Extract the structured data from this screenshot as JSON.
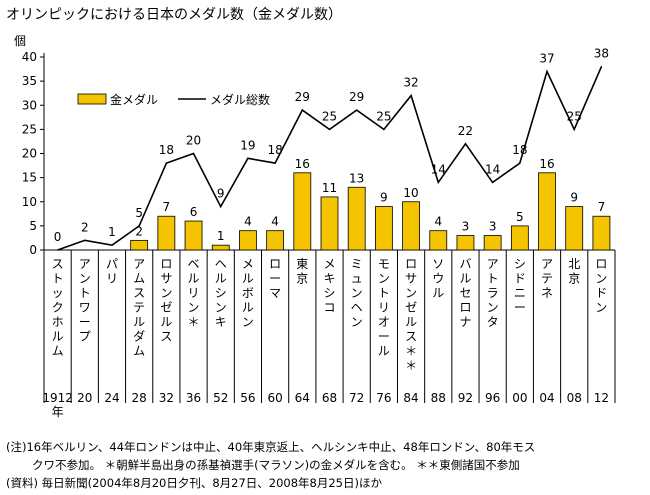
{
  "title": "オリンピックにおける日本のメダル数（金メダル数）",
  "chart_data": {
    "type": "bar+line",
    "ylabel": "個",
    "ylim": [
      0,
      40
    ],
    "yticks": [
      0,
      5,
      10,
      15,
      20,
      25,
      30,
      35,
      40
    ],
    "categories": [
      "ストックホルム",
      "アントワープ",
      "パリ",
      "アムステルダム",
      "ロサンゼルス",
      "ベルリン＊",
      "ヘルシンキ",
      "メルボルン",
      "ローマ",
      "東京",
      "メキシコ",
      "ミュンヘン",
      "モントリオール",
      "ロサンゼルス＊＊",
      "ソウル",
      "バルセロナ",
      "アトランタ",
      "シドニー",
      "アテネ",
      "北京",
      "ロンドン"
    ],
    "years": [
      "1912年",
      "20",
      "24",
      "28",
      "32",
      "36",
      "52",
      "56",
      "60",
      "64",
      "68",
      "72",
      "76",
      "84",
      "88",
      "92",
      "96",
      "00",
      "04",
      "08",
      "12"
    ],
    "series": [
      {
        "name": "金メダル",
        "type": "bar",
        "color": "#f5c400",
        "values": [
          0,
          0,
          0,
          2,
          7,
          6,
          1,
          4,
          4,
          16,
          11,
          13,
          9,
          10,
          4,
          3,
          3,
          5,
          16,
          9,
          7
        ],
        "labels": [
          "",
          "",
          "",
          "2",
          "7",
          "6",
          "1",
          "4",
          "4",
          "16",
          "11",
          "13",
          "9",
          "10",
          "4",
          "3",
          "3",
          "5",
          "16",
          "9",
          "7"
        ]
      },
      {
        "name": "メダル総数",
        "type": "line",
        "color": "#000000",
        "values": [
          0,
          2,
          1,
          5,
          18,
          20,
          9,
          19,
          18,
          29,
          25,
          29,
          25,
          32,
          14,
          22,
          14,
          18,
          37,
          25,
          38
        ]
      }
    ]
  },
  "notes": [
    "(注)16年ベルリン、44年ロンドンは中止、40年東京返上、ヘルシンキ中止、48年ロンドン、80年モス",
    "クワ不参加。 ＊朝鮮半島出身の孫基禎選手(マラソン)の金メダルを含む。 ＊＊東側諸国不参加",
    "(資料) 毎日新聞(2004年8月20日夕刊、8月27日、2008年8月25日)ほか"
  ]
}
